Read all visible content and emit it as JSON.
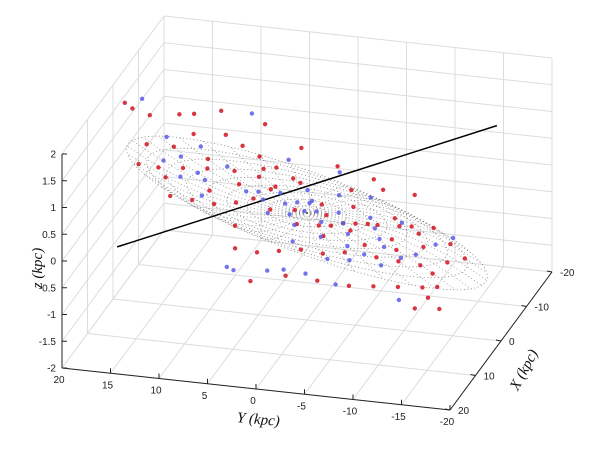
{
  "chart_data": {
    "type": "scatter",
    "projection": "3d",
    "xlabel": "X (kpc)",
    "ylabel": "Y (kpc)",
    "zlabel": "z (kpc)",
    "xlim": [
      -20,
      20
    ],
    "ylim": [
      -20,
      20
    ],
    "zlim": [
      -2,
      2
    ],
    "x_ticks": [
      "-20",
      "-10",
      "0",
      "10",
      "20"
    ],
    "y_ticks": [
      "20",
      "15",
      "10",
      "5",
      "0",
      "-5",
      "-10",
      "-15",
      "-20"
    ],
    "z_ticks": [
      "2",
      "1.5",
      "1",
      "0.5",
      "0",
      "-0.5",
      "-1",
      "-1.5",
      "-2"
    ],
    "grid": true,
    "overlay": "dotted warped disk mesh",
    "series": [
      {
        "color": "#d3121f",
        "points": [
          [
            2,
            16,
            1.1
          ],
          [
            -1,
            14,
            0.9
          ],
          [
            3,
            12,
            0.8
          ],
          [
            -3,
            11,
            0.6
          ],
          [
            1,
            10,
            0.7
          ],
          [
            4,
            9,
            0.5
          ],
          [
            -2,
            8,
            0.5
          ],
          [
            0,
            7,
            0.4
          ],
          [
            5,
            6,
            0.4
          ],
          [
            -4,
            6,
            0.3
          ],
          [
            2,
            5,
            0.3
          ],
          [
            -1,
            4,
            0.3
          ],
          [
            3,
            3,
            0.2
          ],
          [
            -5,
            2,
            0.2
          ],
          [
            1,
            1,
            0.1
          ],
          [
            4,
            0,
            0.05
          ],
          [
            -2,
            -1,
            0.05
          ],
          [
            0,
            -2,
            0.0
          ],
          [
            5,
            -3,
            -0.05
          ],
          [
            -3,
            -4,
            0.0
          ],
          [
            2,
            -5,
            -0.1
          ],
          [
            -1,
            -6,
            -0.15
          ],
          [
            4,
            -7,
            -0.2
          ],
          [
            -4,
            -8,
            -0.2
          ],
          [
            1,
            -9,
            -0.25
          ],
          [
            3,
            -10,
            -0.3
          ],
          [
            -2,
            -11,
            -0.3
          ],
          [
            0,
            -12,
            -0.4
          ],
          [
            5,
            -13,
            -0.4
          ],
          [
            -3,
            -14,
            -0.5
          ],
          [
            2,
            -15,
            -0.5
          ],
          [
            -1,
            -16,
            -0.6
          ],
          [
            6,
            -11,
            -0.3
          ],
          [
            7,
            -9,
            -0.2
          ],
          [
            8,
            -6,
            -0.1
          ],
          [
            9,
            -4,
            -0.1
          ],
          [
            10,
            -2,
            0.0
          ],
          [
            11,
            0,
            0.0
          ],
          [
            12,
            2,
            0.0
          ],
          [
            13,
            4,
            0.1
          ],
          [
            -6,
            3,
            0.2
          ],
          [
            -7,
            5,
            0.3
          ],
          [
            -8,
            7,
            0.4
          ],
          [
            -9,
            9,
            0.5
          ],
          [
            -10,
            11,
            0.6
          ],
          [
            -6,
            -3,
            0.1
          ],
          [
            -7,
            -6,
            0.1
          ],
          [
            -8,
            -9,
            0.0
          ],
          [
            6,
            8,
            0.4
          ],
          [
            7,
            10,
            0.5
          ],
          [
            8,
            12,
            0.6
          ],
          [
            6,
            13,
            0.8
          ],
          [
            -5,
            13,
            0.9
          ],
          [
            -7,
            15,
            1.1
          ],
          [
            -3,
            17,
            1.3
          ],
          [
            0,
            18,
            1.6
          ],
          [
            3,
            -2,
            0.0
          ],
          [
            2,
            -3,
            -0.05
          ],
          [
            1,
            -4,
            -0.05
          ],
          [
            0,
            -5,
            -0.1
          ],
          [
            -1,
            -7,
            -0.15
          ],
          [
            -2,
            -9,
            -0.2
          ],
          [
            -3,
            -10,
            -0.25
          ],
          [
            -4,
            -12,
            -0.3
          ],
          [
            4,
            -14,
            -0.6
          ],
          [
            6,
            -15,
            -0.7
          ],
          [
            8,
            -14,
            -0.6
          ],
          [
            10,
            -12,
            -0.5
          ],
          [
            12,
            -10,
            -0.4
          ],
          [
            14,
            -8,
            -0.3
          ],
          [
            15,
            -5,
            -0.2
          ],
          [
            16,
            -2,
            -0.1
          ],
          [
            5,
            14,
            0.9
          ],
          [
            9,
            15,
            1.2
          ],
          [
            -9,
            14,
            1.0
          ],
          [
            -12,
            12,
            0.9
          ],
          [
            -14,
            8,
            0.6
          ],
          [
            -13,
            4,
            0.3
          ],
          [
            -12,
            0,
            0.1
          ],
          [
            -11,
            -4,
            0.0
          ],
          [
            3,
            18,
            1.9
          ],
          [
            -6,
            9,
            -0.8
          ],
          [
            7,
            4,
            -0.9
          ],
          [
            2,
            -13,
            -1.2
          ],
          [
            -2,
            5,
            0.6
          ],
          [
            1,
            3,
            0.5
          ],
          [
            9,
            -16,
            -0.9
          ],
          [
            11,
            -14,
            -0.8
          ]
        ]
      },
      {
        "color": "#5a5ae6",
        "points": [
          [
            1,
            6,
            0.35
          ],
          [
            0,
            5,
            0.3
          ],
          [
            2,
            4,
            0.3
          ],
          [
            -1,
            3,
            0.25
          ],
          [
            1,
            2,
            0.2
          ],
          [
            3,
            1,
            0.15
          ],
          [
            -2,
            0,
            0.1
          ],
          [
            0,
            -1,
            0.05
          ],
          [
            2,
            -2,
            0.0
          ],
          [
            -1,
            -3,
            0.0
          ],
          [
            1,
            -4,
            -0.05
          ],
          [
            3,
            -5,
            -0.1
          ],
          [
            -2,
            -6,
            -0.1
          ],
          [
            0,
            -7,
            -0.15
          ],
          [
            2,
            -8,
            -0.2
          ],
          [
            -3,
            -9,
            -0.2
          ],
          [
            4,
            3,
            0.2
          ],
          [
            5,
            0,
            0.1
          ],
          [
            -4,
            1,
            0.15
          ],
          [
            -5,
            -2,
            0.05
          ],
          [
            6,
            -3,
            0.0
          ],
          [
            -6,
            -5,
            0.0
          ],
          [
            7,
            -6,
            -0.05
          ],
          [
            4,
            -9,
            -0.2
          ],
          [
            2,
            10,
            0.55
          ],
          [
            -3,
            9,
            0.5
          ],
          [
            1,
            11,
            0.6
          ],
          [
            4,
            12,
            0.7
          ],
          [
            -4,
            12,
            0.75
          ],
          [
            0,
            13,
            0.8
          ],
          [
            3,
            14,
            0.9
          ],
          [
            -2,
            15,
            1.0
          ],
          [
            8,
            -8,
            -0.1
          ],
          [
            9,
            -10,
            -0.2
          ],
          [
            10,
            -7,
            -0.1
          ],
          [
            11,
            -5,
            -0.05
          ],
          [
            5,
            -11,
            -0.3
          ],
          [
            3,
            -12,
            -0.35
          ],
          [
            -1,
            -13,
            -0.4
          ],
          [
            -4,
            -14,
            -0.45
          ],
          [
            6,
            6,
            -0.8
          ],
          [
            4,
            -4,
            -1.0
          ],
          [
            -2,
            2,
            -0.7
          ],
          [
            1,
            8,
            -1.1
          ],
          [
            8,
            2,
            -0.6
          ],
          [
            2,
            -10,
            -1.3
          ],
          [
            -5,
            7,
            1.4
          ],
          [
            0,
            17,
            1.8
          ],
          [
            12,
            -3,
            -0.3
          ],
          [
            13,
            -1,
            -0.2
          ],
          [
            -8,
            4,
            0.4
          ],
          [
            -9,
            -1,
            0.2
          ],
          [
            7,
            9,
            0.6
          ],
          [
            -1,
            0,
            0.12
          ],
          [
            0,
            1,
            0.18
          ],
          [
            1,
            0,
            0.1
          ]
        ]
      }
    ]
  }
}
